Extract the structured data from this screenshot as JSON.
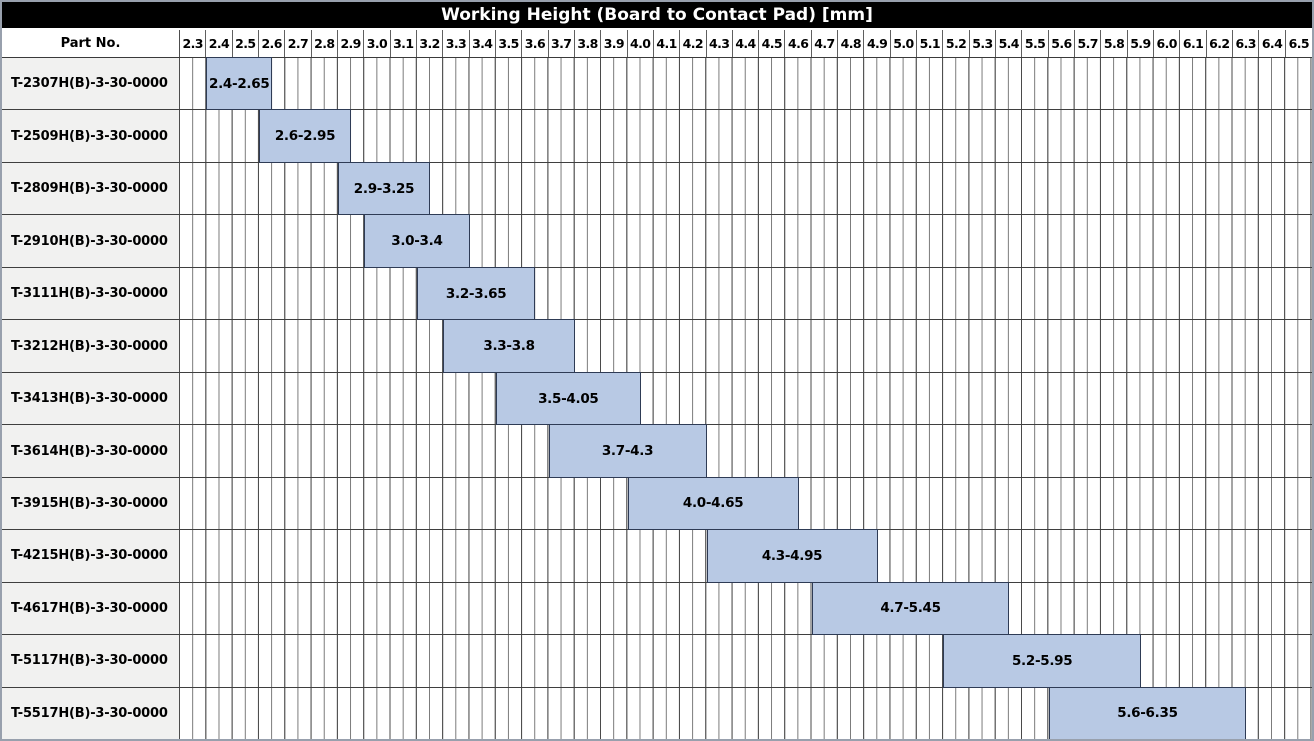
{
  "title": "Working Height (Board to Contact Pad) [mm]",
  "row_header": "Part No.",
  "colors": {
    "title_bg": "#000000",
    "title_text": "#ffffff",
    "bar_fill": "#b8c9e4",
    "bar_border": "#2e3b55",
    "label_cell_bg": "#f1f1f0",
    "grid_line_minor": "#787878",
    "grid_line_major": "#4a4a4a",
    "row_border": "#3f3f3f"
  },
  "chart_data": {
    "type": "bar",
    "orientation": "horizontal-range",
    "title": "Working Height (Board to Contact Pad) [mm]",
    "row_header": "Part No.",
    "axis": {
      "unit": "mm",
      "min": 2.3,
      "max": 6.6,
      "major_step": 0.1,
      "minor_step": 0.05,
      "tick_labels": [
        "2.3",
        "2.4",
        "2.5",
        "2.6",
        "2.7",
        "2.8",
        "2.9",
        "3.0",
        "3.1",
        "3.2",
        "3.3",
        "3.4",
        "3.5",
        "3.6",
        "3.7",
        "3.8",
        "3.9",
        "4.0",
        "4.1",
        "4.2",
        "4.3",
        "4.4",
        "4.5",
        "4.6",
        "4.7",
        "4.8",
        "4.9",
        "5.0",
        "5.1",
        "5.2",
        "5.3",
        "5.4",
        "5.5",
        "5.6",
        "5.7",
        "5.8",
        "5.9",
        "6.0",
        "6.1",
        "6.2",
        "6.3",
        "6.4",
        "6.5"
      ]
    },
    "rows": [
      {
        "part_no": "T-2307H(B)-3-30-0000",
        "start": 2.4,
        "end": 2.65,
        "range_label": "2.4-2.65"
      },
      {
        "part_no": "T-2509H(B)-3-30-0000",
        "start": 2.6,
        "end": 2.95,
        "range_label": "2.6-2.95"
      },
      {
        "part_no": "T-2809H(B)-3-30-0000",
        "start": 2.9,
        "end": 3.25,
        "range_label": "2.9-3.25"
      },
      {
        "part_no": "T-2910H(B)-3-30-0000",
        "start": 3.0,
        "end": 3.4,
        "range_label": "3.0-3.4"
      },
      {
        "part_no": "T-3111H(B)-3-30-0000",
        "start": 3.2,
        "end": 3.65,
        "range_label": "3.2-3.65"
      },
      {
        "part_no": "T-3212H(B)-3-30-0000",
        "start": 3.3,
        "end": 3.8,
        "range_label": "3.3-3.8"
      },
      {
        "part_no": "T-3413H(B)-3-30-0000",
        "start": 3.5,
        "end": 4.05,
        "range_label": "3.5-4.05"
      },
      {
        "part_no": "T-3614H(B)-3-30-0000",
        "start": 3.7,
        "end": 4.3,
        "range_label": "3.7-4.3"
      },
      {
        "part_no": "T-3915H(B)-3-30-0000",
        "start": 4.0,
        "end": 4.65,
        "range_label": "4.0-4.65"
      },
      {
        "part_no": "T-4215H(B)-3-30-0000",
        "start": 4.3,
        "end": 4.95,
        "range_label": "4.3-4.95"
      },
      {
        "part_no": "T-4617H(B)-3-30-0000",
        "start": 4.7,
        "end": 5.45,
        "range_label": "4.7-5.45"
      },
      {
        "part_no": "T-5117H(B)-3-30-0000",
        "start": 5.2,
        "end": 5.95,
        "range_label": "5.2-5.95"
      },
      {
        "part_no": "T-5517H(B)-3-30-0000",
        "start": 5.6,
        "end": 6.35,
        "range_label": "5.6-6.35"
      }
    ]
  }
}
